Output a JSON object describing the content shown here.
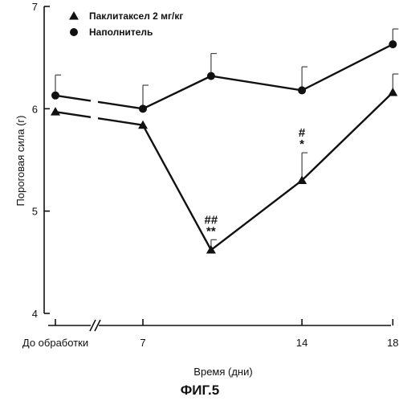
{
  "chart_data": {
    "type": "line",
    "figure_label": "ФИГ.5",
    "xlabel": "Время (дни)",
    "ylabel": "Пороговая сила (г)",
    "ylim": [
      4,
      7
    ],
    "yticks": [
      "4",
      "5",
      "6",
      "7"
    ],
    "x_tick_labels": [
      "До обработки",
      "7",
      "14",
      "18"
    ],
    "axis_break": true,
    "grid": false,
    "legend_position": "top-left",
    "series": [
      {
        "name": "Паклитаксел 2 мг/кг",
        "marker": "triangle",
        "points": [
          {
            "x": "До обработки",
            "y": 5.97,
            "err": null
          },
          {
            "x": 7,
            "y": 5.84,
            "err": null
          },
          {
            "x": 10,
            "y": 4.62,
            "err": 0.1
          },
          {
            "x": 14,
            "y": 5.3,
            "err": 0.27
          },
          {
            "x": 18,
            "y": 6.16,
            "err": 0.18
          }
        ]
      },
      {
        "name": "Наполнитель",
        "marker": "circle",
        "points": [
          {
            "x": "До обработки",
            "y": 6.13,
            "err": 0.2
          },
          {
            "x": 7,
            "y": 6.0,
            "err": 0.23
          },
          {
            "x": 10,
            "y": 6.32,
            "err": 0.22
          },
          {
            "x": 14,
            "y": 6.18,
            "err": 0.23
          },
          {
            "x": 18,
            "y": 6.63,
            "err": 0.15
          }
        ]
      }
    ],
    "annotations": [
      {
        "x": 10,
        "y": 4.62,
        "lines": [
          "##",
          "**"
        ]
      },
      {
        "x": 14,
        "y": 5.3,
        "lines": [
          "#",
          "*"
        ]
      }
    ]
  }
}
